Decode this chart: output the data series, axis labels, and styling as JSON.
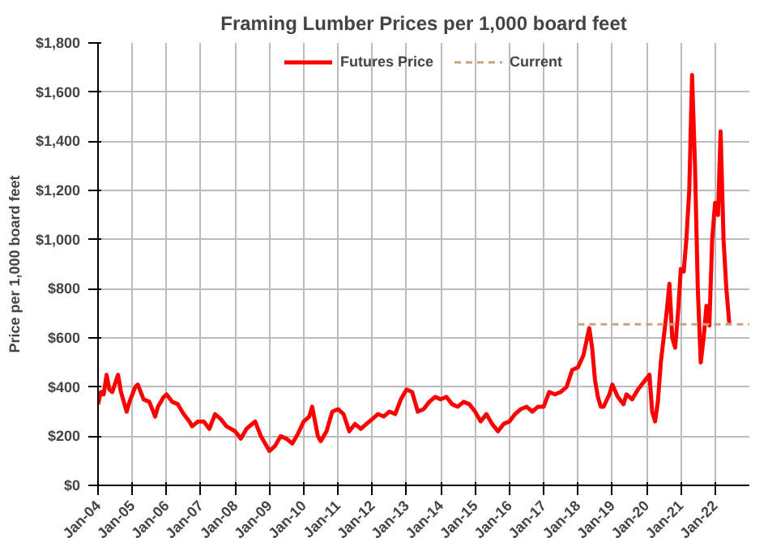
{
  "chart_data": {
    "type": "line",
    "title": "Framing Lumber Prices per 1,000 board feet",
    "ylabel": "Price per 1,000 board feet",
    "xlim": [
      "2004-01",
      "2023-01"
    ],
    "xticks": [
      {
        "value": "2004-01",
        "label": "Jan-04"
      },
      {
        "value": "2005-01",
        "label": "Jan-05"
      },
      {
        "value": "2006-01",
        "label": "Jan-06"
      },
      {
        "value": "2007-01",
        "label": "Jan-07"
      },
      {
        "value": "2008-01",
        "label": "Jan-08"
      },
      {
        "value": "2009-01",
        "label": "Jan-09"
      },
      {
        "value": "2010-01",
        "label": "Jan-10"
      },
      {
        "value": "2011-01",
        "label": "Jan-11"
      },
      {
        "value": "2012-01",
        "label": "Jan-12"
      },
      {
        "value": "2013-01",
        "label": "Jan-13"
      },
      {
        "value": "2014-01",
        "label": "Jan-14"
      },
      {
        "value": "2015-01",
        "label": "Jan-15"
      },
      {
        "value": "2016-01",
        "label": "Jan-16"
      },
      {
        "value": "2017-01",
        "label": "Jan-17"
      },
      {
        "value": "2018-01",
        "label": "Jan-18"
      },
      {
        "value": "2019-01",
        "label": "Jan-19"
      },
      {
        "value": "2020-01",
        "label": "Jan-20"
      },
      {
        "value": "2021-01",
        "label": "Jan-21"
      },
      {
        "value": "2022-01",
        "label": "Jan-22"
      }
    ],
    "ylim": [
      0,
      1800
    ],
    "yticks": [
      {
        "value": 0,
        "label": "$0"
      },
      {
        "value": 200,
        "label": "$200"
      },
      {
        "value": 400,
        "label": "$400"
      },
      {
        "value": 600,
        "label": "$600"
      },
      {
        "value": 800,
        "label": "$800"
      },
      {
        "value": 1000,
        "label": "$1,000"
      },
      {
        "value": 1200,
        "label": "$1,200"
      },
      {
        "value": 1400,
        "label": "$1,400"
      },
      {
        "value": 1600,
        "label": "$1,600"
      },
      {
        "value": 1800,
        "label": "$1,800"
      }
    ],
    "grid": true,
    "legend": "top",
    "series": [
      {
        "name": "Futures Price",
        "color": "#ff0000",
        "line_style": "solid",
        "x": [
          "2004-01",
          "2004-02",
          "2004-03",
          "2004-04",
          "2004-05",
          "2004-06",
          "2004-08",
          "2004-09",
          "2004-11",
          "2004-12",
          "2005-02",
          "2005-03",
          "2005-05",
          "2005-07",
          "2005-09",
          "2005-10",
          "2005-12",
          "2006-01",
          "2006-03",
          "2006-05",
          "2006-07",
          "2006-09",
          "2006-10",
          "2006-12",
          "2007-02",
          "2007-04",
          "2007-06",
          "2007-08",
          "2007-10",
          "2008-01",
          "2008-03",
          "2008-05",
          "2008-07",
          "2008-08",
          "2008-10",
          "2008-12",
          "2009-01",
          "2009-03",
          "2009-05",
          "2009-07",
          "2009-09",
          "2009-11",
          "2010-01",
          "2010-03",
          "2010-04",
          "2010-06",
          "2010-07",
          "2010-09",
          "2010-11",
          "2011-01",
          "2011-03",
          "2011-05",
          "2011-07",
          "2011-09",
          "2011-11",
          "2012-01",
          "2012-03",
          "2012-05",
          "2012-07",
          "2012-09",
          "2012-11",
          "2013-01",
          "2013-03",
          "2013-05",
          "2013-07",
          "2013-09",
          "2013-11",
          "2014-01",
          "2014-03",
          "2014-05",
          "2014-07",
          "2014-09",
          "2014-11",
          "2015-01",
          "2015-03",
          "2015-05",
          "2015-07",
          "2015-09",
          "2015-11",
          "2016-01",
          "2016-03",
          "2016-05",
          "2016-07",
          "2016-09",
          "2016-11",
          "2017-01",
          "2017-03",
          "2017-05",
          "2017-07",
          "2017-09",
          "2017-11",
          "2018-01",
          "2018-03",
          "2018-05",
          "2018-06",
          "2018-07",
          "2018-08",
          "2018-09",
          "2018-10",
          "2018-12",
          "2019-01",
          "2019-03",
          "2019-05",
          "2019-06",
          "2019-08",
          "2019-10",
          "2019-12",
          "2020-02",
          "2020-03",
          "2020-04",
          "2020-05",
          "2020-06",
          "2020-08",
          "2020-09",
          "2020-10",
          "2020-11",
          "2020-12",
          "2021-01",
          "2021-02",
          "2021-03",
          "2021-04",
          "2021-05",
          "2021-06",
          "2021-07",
          "2021-08",
          "2021-09",
          "2021-10",
          "2021-11",
          "2021-12",
          "2022-01",
          "2022-02",
          "2022-03",
          "2022-04",
          "2022-05",
          "2022-06"
        ],
        "values": [
          330,
          380,
          370,
          450,
          390,
          380,
          450,
          380,
          300,
          340,
          400,
          410,
          350,
          340,
          280,
          320,
          360,
          370,
          340,
          330,
          290,
          260,
          240,
          260,
          260,
          230,
          290,
          270,
          240,
          220,
          190,
          230,
          250,
          260,
          200,
          160,
          140,
          160,
          200,
          190,
          170,
          210,
          260,
          280,
          320,
          200,
          180,
          220,
          300,
          310,
          290,
          220,
          250,
          230,
          250,
          270,
          290,
          280,
          300,
          290,
          350,
          390,
          380,
          300,
          310,
          340,
          360,
          350,
          360,
          330,
          320,
          340,
          330,
          300,
          260,
          290,
          250,
          220,
          250,
          260,
          290,
          310,
          320,
          300,
          320,
          320,
          380,
          370,
          380,
          400,
          470,
          480,
          530,
          640,
          560,
          430,
          360,
          320,
          320,
          370,
          410,
          360,
          330,
          370,
          350,
          390,
          420,
          450,
          300,
          260,
          340,
          500,
          700,
          820,
          600,
          560,
          700,
          880,
          870,
          1000,
          1200,
          1670,
          1300,
          800,
          500,
          600,
          730,
          650,
          1000,
          1150,
          1100,
          1440,
          1000,
          800,
          660
        ]
      },
      {
        "name": "Current",
        "color": "#c4a77d",
        "line_style": "dashed",
        "x": [
          "2018-01",
          "2023-01"
        ],
        "values": [
          655,
          655
        ]
      }
    ]
  }
}
